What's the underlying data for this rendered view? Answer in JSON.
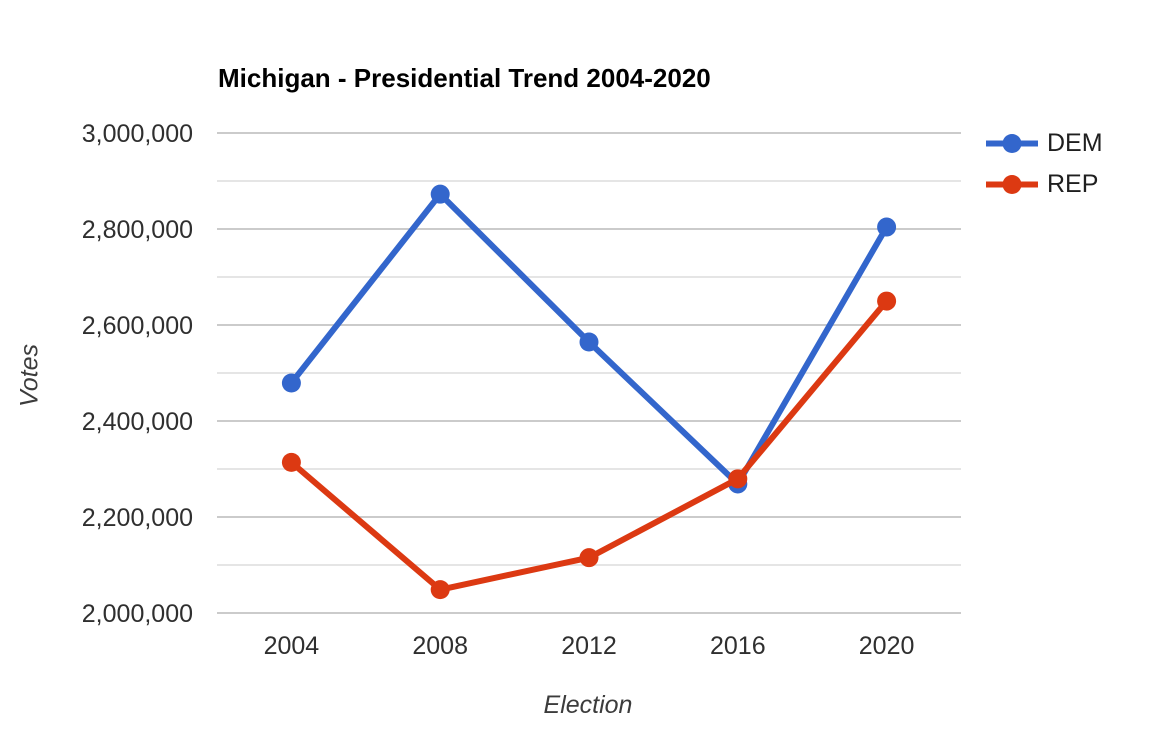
{
  "chart_data": {
    "type": "line",
    "title": "Michigan - Presidential Trend 2004-2020",
    "xlabel": "Election",
    "ylabel": "Votes",
    "categories": [
      "2004",
      "2008",
      "2012",
      "2016",
      "2020"
    ],
    "series": [
      {
        "name": "DEM",
        "color": "#3366cc",
        "values": [
          2479183,
          2872579,
          2564569,
          2268839,
          2804040
        ]
      },
      {
        "name": "REP",
        "color": "#dc3912",
        "values": [
          2313746,
          2048639,
          2115256,
          2279543,
          2649852
        ]
      }
    ],
    "ylim": [
      2000000,
      3000000
    ],
    "y_grid_step": 100000,
    "y_label_step": 200000,
    "y_ticks": [
      {
        "value": 2000000,
        "label": "2,000,000"
      },
      {
        "value": 2200000,
        "label": "2,200,000"
      },
      {
        "value": 2400000,
        "label": "2,400,000"
      },
      {
        "value": 2600000,
        "label": "2,600,000"
      },
      {
        "value": 2800000,
        "label": "2,800,000"
      },
      {
        "value": 3000000,
        "label": "3,000,000"
      }
    ],
    "grid": true,
    "legend_position": "right",
    "marker": "circle"
  },
  "style": {
    "gridline_major_color": "#cbcbcb",
    "gridline_minor_color": "#e5e5e5",
    "tick_text_color": "#2f2f2f",
    "background": "#ffffff"
  }
}
